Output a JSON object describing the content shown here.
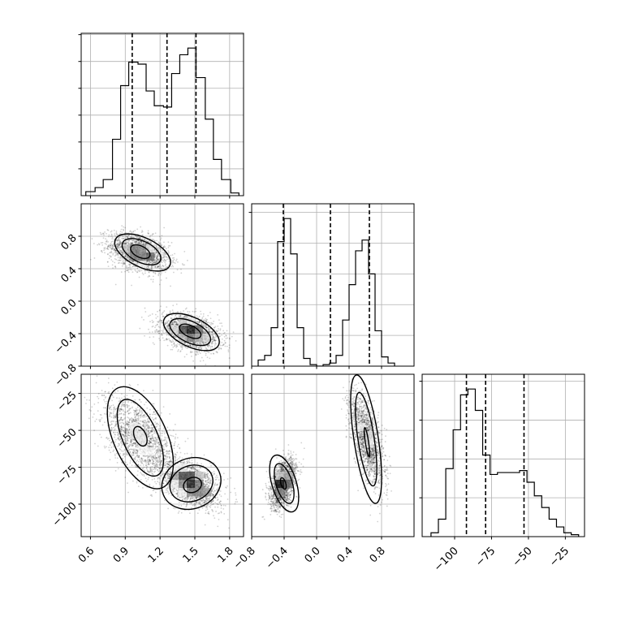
{
  "chart_data": {
    "type": "corner",
    "grid": true,
    "parameters": [
      {
        "name": "",
        "range": [
          0.52,
          1.92
        ],
        "ticks": [
          0.6,
          0.9,
          1.2,
          1.5,
          1.8
        ],
        "tick_labels": [
          "0.6",
          "0.9",
          "1.2",
          "1.5",
          "1.8"
        ]
      },
      {
        "name": "",
        "range": [
          -0.8,
          1.2
        ],
        "ticks": [
          -0.8,
          -0.4,
          0.0,
          0.4,
          0.8
        ],
        "tick_labels": [
          "−0.8",
          "−0.4",
          "0.0",
          "0.4",
          "0.8"
        ]
      },
      {
        "name": "",
        "range": [
          -122,
          -12
        ],
        "ticks": [
          -100,
          -75,
          -50,
          -25
        ],
        "tick_labels": [
          "−100",
          "−75",
          "−50",
          "−25"
        ]
      }
    ],
    "histograms": [
      {
        "param": 0,
        "quantiles": [
          0.96,
          1.26,
          1.51
        ],
        "bins": [
          [
            0.56,
            0.64,
            0.03
          ],
          [
            0.64,
            0.71,
            0.06
          ],
          [
            0.71,
            0.79,
            0.12
          ],
          [
            0.79,
            0.86,
            0.42
          ],
          [
            0.86,
            0.93,
            0.82
          ],
          [
            0.93,
            1.01,
            0.995
          ],
          [
            1.01,
            1.08,
            0.98
          ],
          [
            1.08,
            1.15,
            0.78
          ],
          [
            1.15,
            1.23,
            0.67
          ],
          [
            1.23,
            1.3,
            0.66
          ],
          [
            1.3,
            1.37,
            0.91
          ],
          [
            1.37,
            1.44,
            1.05
          ],
          [
            1.44,
            1.51,
            1.1
          ],
          [
            1.51,
            1.59,
            0.88
          ],
          [
            1.59,
            1.66,
            0.57
          ],
          [
            1.66,
            1.73,
            0.27
          ],
          [
            1.73,
            1.81,
            0.12
          ],
          [
            1.81,
            1.88,
            0.02
          ]
        ]
      },
      {
        "param": 1,
        "quantiles": [
          -0.41,
          0.17,
          0.65
        ],
        "bins": [
          [
            -0.72,
            -0.64,
            0.04
          ],
          [
            -0.64,
            -0.56,
            0.07
          ],
          [
            -0.56,
            -0.48,
            0.25
          ],
          [
            -0.48,
            -0.4,
            0.81
          ],
          [
            -0.4,
            -0.32,
            0.96
          ],
          [
            -0.32,
            -0.24,
            0.73
          ],
          [
            -0.24,
            -0.16,
            0.25
          ],
          [
            -0.16,
            -0.08,
            0.05
          ],
          [
            -0.08,
            0.0,
            0.01
          ],
          [
            0.0,
            0.08,
            0.0
          ],
          [
            0.08,
            0.16,
            0.01
          ],
          [
            0.16,
            0.24,
            0.02
          ],
          [
            0.24,
            0.32,
            0.07
          ],
          [
            0.32,
            0.4,
            0.3
          ],
          [
            0.4,
            0.48,
            0.53
          ],
          [
            0.48,
            0.56,
            0.75
          ],
          [
            0.56,
            0.64,
            0.82
          ],
          [
            0.64,
            0.72,
            0.6
          ],
          [
            0.72,
            0.8,
            0.23
          ],
          [
            0.8,
            0.88,
            0.06
          ],
          [
            0.88,
            0.96,
            0.02
          ]
        ]
      },
      {
        "param": 2,
        "quantiles": [
          -92,
          -79,
          -53
        ],
        "bins": [
          [
            -116,
            -111,
            0.02
          ],
          [
            -111,
            -106,
            0.09
          ],
          [
            -106,
            -101,
            0.35
          ],
          [
            -101,
            -96,
            0.55
          ],
          [
            -96,
            -91,
            0.73
          ],
          [
            -91,
            -86,
            0.76
          ],
          [
            -86,
            -81,
            0.65
          ],
          [
            -81,
            -76,
            0.42
          ],
          [
            -76,
            -71,
            0.32
          ],
          [
            -71,
            -56,
            0.33
          ],
          [
            -56,
            -51,
            0.34
          ],
          [
            -51,
            -46,
            0.28
          ],
          [
            -46,
            -41,
            0.21
          ],
          [
            -41,
            -36,
            0.15
          ],
          [
            -36,
            -31,
            0.09
          ],
          [
            -31,
            -26,
            0.05
          ],
          [
            -26,
            -21,
            0.02
          ],
          [
            -21,
            -16,
            0.01
          ]
        ]
      }
    ],
    "scatter_panels": [
      {
        "x_param": 0,
        "y_param": 1,
        "modes": [
          {
            "mean": [
              1.02,
              0.6
            ],
            "sd": [
              0.13,
              0.12
            ],
            "corr": -0.38,
            "weight": 0.5
          },
          {
            "mean": [
              1.46,
              -0.38
            ],
            "sd": [
              0.13,
              0.11
            ],
            "corr": -0.38,
            "weight": 0.5
          }
        ],
        "contours": [
          [
            {
              "center": [
                1.05,
                0.6
              ],
              "rx": 0.26,
              "ry": 0.18,
              "tilt": -0.45
            },
            {
              "center": [
                1.47,
                -0.38
              ],
              "rx": 0.26,
              "ry": 0.18,
              "tilt": -0.45
            }
          ],
          [
            {
              "center": [
                1.04,
                0.61
              ],
              "rx": 0.18,
              "ry": 0.13,
              "tilt": -0.45
            },
            {
              "center": [
                1.46,
                -0.38
              ],
              "rx": 0.19,
              "ry": 0.13,
              "tilt": -0.45
            }
          ],
          [
            {
              "center": [
                1.03,
                0.61
              ],
              "rx": 0.09,
              "ry": 0.07,
              "tilt": -0.45
            },
            {
              "center": [
                1.46,
                -0.37
              ],
              "rx": 0.1,
              "ry": 0.07,
              "tilt": -0.45
            }
          ]
        ]
      },
      {
        "x_param": 0,
        "y_param": 2,
        "modes": [
          {
            "mean": [
              1.03,
              -56
            ],
            "sd": [
              0.15,
              14
            ],
            "corr": -0.55,
            "weight": 0.5
          },
          {
            "mean": [
              1.47,
              -86
            ],
            "sd": [
              0.12,
              8
            ],
            "corr": -0.45,
            "weight": 0.5
          }
        ],
        "contours": [
          [
            {
              "center": [
                1.03,
                -55
              ],
              "rx": 0.23,
              "ry": 37,
              "tilt": 0.42
            },
            {
              "center": [
                1.47,
                -86
              ],
              "rx": 0.26,
              "ry": 17,
              "tilt": 0.38
            }
          ],
          [
            {
              "center": [
                1.03,
                -55
              ],
              "rx": 0.15,
              "ry": 28,
              "tilt": 0.42
            },
            {
              "center": [
                1.47,
                -86
              ],
              "rx": 0.19,
              "ry": 12,
              "tilt": 0.38
            }
          ],
          [
            {
              "center": [
                1.03,
                -54
              ],
              "rx": 0.05,
              "ry": 7,
              "tilt": 0.42
            },
            {
              "center": [
                1.48,
                -87
              ],
              "rx": 0.08,
              "ry": 5,
              "tilt": 0.38
            }
          ]
        ]
      },
      {
        "x_param": 1,
        "y_param": 2,
        "modes": [
          {
            "mean": [
              -0.41,
              -86
            ],
            "sd": [
              0.08,
              8
            ],
            "corr": 0.45,
            "weight": 0.5
          },
          {
            "mean": [
              0.62,
              -56
            ],
            "sd": [
              0.1,
              15
            ],
            "corr": -0.6,
            "weight": 0.5
          }
        ],
        "contours": [
          [
            {
              "center": [
                -0.4,
                -86
              ],
              "rx": 0.15,
              "ry": 20,
              "tilt": 0.3
            },
            {
              "center": [
                0.61,
                -56
              ],
              "rx": 0.15,
              "ry": 44,
              "tilt": 0.15
            }
          ],
          [
            {
              "center": [
                -0.4,
                -86
              ],
              "rx": 0.1,
              "ry": 14,
              "tilt": 0.3
            },
            {
              "center": [
                0.61,
                -56
              ],
              "rx": 0.1,
              "ry": 32,
              "tilt": 0.15
            }
          ],
          [
            {
              "center": [
                -0.41,
                -86
              ],
              "rx": 0.03,
              "ry": 4,
              "tilt": 0.3
            },
            {
              "center": [
                0.62,
                -58
              ],
              "rx": 0.02,
              "ry": 10,
              "tilt": 0.15
            }
          ]
        ]
      }
    ]
  }
}
